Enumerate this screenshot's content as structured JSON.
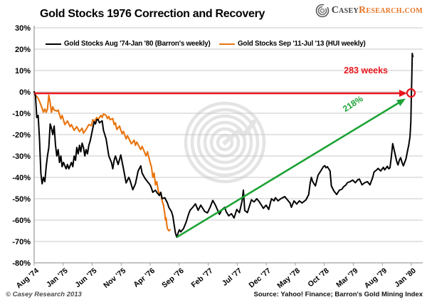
{
  "header": {
    "title": "Gold Stocks 1976 Correction and Recovery",
    "logo": {
      "casey": "Casey",
      "research": "Research.com",
      "research_color": "#e87525",
      "casey_color": "#3d3d3d"
    }
  },
  "footer": {
    "copyright": "© Casey Research 2013",
    "source": "Source: Yahoo! Finance; Barron's Gold Mining Index"
  },
  "chart_data": {
    "type": "line",
    "title": "Gold Stocks 1976 Correction and Recovery",
    "grid": true,
    "legend_position": "top-inside",
    "x_axis": {
      "unit": "weeks",
      "range_weeks": [
        0,
        285
      ],
      "labels": [
        "Aug '74",
        "Jan '75",
        "Jun '75",
        "Nov '75",
        "Apr '76",
        "Sep '76",
        "Feb '77",
        "Jul '77",
        "Dec '77",
        "May '78",
        "Oct '78",
        "Mar '79",
        "Aug '79",
        "Jan '80"
      ]
    },
    "y_axis": {
      "min": -80,
      "max": 30,
      "step": 10,
      "format": "percent",
      "tick_labels": [
        "30%",
        "20%",
        "10%",
        "0%",
        "-10%",
        "-20%",
        "-30%",
        "-40%",
        "-50%",
        "-60%",
        "-70%",
        "-80%"
      ]
    },
    "series": [
      {
        "name": "Gold Stocks Aug '74-Jan '80 (Barron's weekly)",
        "color": "#000000",
        "points": [
          [
            0,
            0
          ],
          [
            1,
            -2
          ],
          [
            2,
            -12
          ],
          [
            3,
            -11
          ],
          [
            4,
            -22
          ],
          [
            5,
            -38
          ],
          [
            6,
            -43
          ],
          [
            7,
            -40
          ],
          [
            8,
            -42
          ],
          [
            9,
            -35
          ],
          [
            10,
            -30
          ],
          [
            11,
            -26
          ],
          [
            12,
            -15
          ],
          [
            13,
            -17
          ],
          [
            14,
            -20
          ],
          [
            15,
            -16
          ],
          [
            16,
            -25
          ],
          [
            17,
            -30
          ],
          [
            18,
            -27
          ],
          [
            19,
            -33
          ],
          [
            20,
            -30
          ],
          [
            21,
            -35
          ],
          [
            22,
            -33
          ],
          [
            24,
            -36
          ],
          [
            25,
            -34
          ],
          [
            26,
            -36
          ],
          [
            28,
            -33
          ],
          [
            29,
            -35
          ],
          [
            30,
            -30
          ],
          [
            31,
            -32
          ],
          [
            32,
            -26
          ],
          [
            33,
            -29
          ],
          [
            34,
            -25
          ],
          [
            35,
            -28
          ],
          [
            36,
            -24
          ],
          [
            37,
            -26
          ],
          [
            38,
            -30
          ],
          [
            39,
            -27
          ],
          [
            40,
            -29
          ],
          [
            41,
            -25
          ],
          [
            42,
            -23
          ],
          [
            44,
            -17
          ],
          [
            45,
            -14
          ],
          [
            46,
            -15
          ],
          [
            47,
            -13
          ],
          [
            48,
            -13
          ],
          [
            49,
            -14.5
          ],
          [
            50,
            -14
          ],
          [
            51,
            -13.5
          ],
          [
            52,
            -18
          ],
          [
            54,
            -22
          ],
          [
            56,
            -30
          ],
          [
            58,
            -33
          ],
          [
            59,
            -36
          ],
          [
            60,
            -32
          ],
          [
            61,
            -30
          ],
          [
            63,
            -34
          ],
          [
            65,
            -29.5
          ],
          [
            67,
            -36
          ],
          [
            69,
            -42.6
          ],
          [
            71,
            -40
          ],
          [
            72,
            -41.5
          ],
          [
            74,
            -45.8
          ],
          [
            76,
            -43
          ],
          [
            78,
            -37
          ],
          [
            80,
            -34.6
          ],
          [
            81,
            -38
          ],
          [
            83,
            -40.3
          ],
          [
            85,
            -42
          ],
          [
            87,
            -43.5
          ],
          [
            88,
            -45
          ],
          [
            89,
            -47
          ],
          [
            91,
            -46
          ],
          [
            92,
            -47
          ],
          [
            94,
            -48.5
          ],
          [
            95,
            -47
          ],
          [
            96,
            -50
          ],
          [
            98,
            -49.5
          ],
          [
            100,
            -52
          ],
          [
            101,
            -54
          ],
          [
            103,
            -56
          ],
          [
            104,
            -58
          ],
          [
            105,
            -62
          ],
          [
            106,
            -66
          ],
          [
            107,
            -68
          ],
          [
            108,
            -66
          ],
          [
            109,
            -64.5
          ],
          [
            110,
            -65.5
          ],
          [
            112,
            -64
          ],
          [
            114,
            -61
          ],
          [
            116,
            -57
          ],
          [
            117,
            -55.4
          ],
          [
            119,
            -54
          ],
          [
            121,
            -52.4
          ],
          [
            123,
            -55.4
          ],
          [
            125,
            -53
          ],
          [
            128,
            -56
          ],
          [
            130,
            -56.6
          ],
          [
            132,
            -54
          ],
          [
            134,
            -50.8
          ],
          [
            136,
            -53
          ],
          [
            139,
            -57.3
          ],
          [
            141,
            -55
          ],
          [
            143,
            -54
          ],
          [
            144,
            -56
          ],
          [
            146,
            -58
          ],
          [
            148,
            -57
          ],
          [
            150,
            -59
          ],
          [
            152,
            -55
          ],
          [
            154,
            -56.5
          ],
          [
            156,
            -51
          ],
          [
            157,
            -46
          ],
          [
            158,
            -55.5
          ],
          [
            160,
            -56.5
          ],
          [
            163,
            -50.5
          ],
          [
            165,
            -51.5
          ],
          [
            167,
            -50
          ],
          [
            169,
            -51.5
          ],
          [
            172,
            -54.5
          ],
          [
            174,
            -53
          ],
          [
            176,
            -55
          ],
          [
            178,
            -50
          ],
          [
            180,
            -51
          ],
          [
            181,
            -49.5
          ],
          [
            183,
            -51
          ],
          [
            185,
            -50
          ],
          [
            188,
            -49
          ],
          [
            190,
            -50.5
          ],
          [
            192,
            -52
          ],
          [
            193,
            -54
          ],
          [
            195,
            -51
          ],
          [
            197,
            -52.5
          ],
          [
            199,
            -51
          ],
          [
            201,
            -52
          ],
          [
            203,
            -51
          ],
          [
            204,
            -50.5
          ],
          [
            206,
            -48
          ],
          [
            207,
            -43
          ],
          [
            208,
            -40
          ],
          [
            209,
            -42
          ],
          [
            211,
            -44
          ],
          [
            213,
            -39
          ],
          [
            215,
            -37
          ],
          [
            217,
            -35
          ],
          [
            218,
            -34.5
          ],
          [
            219,
            -35.5
          ],
          [
            220,
            -35
          ],
          [
            222,
            -37
          ],
          [
            223,
            -44
          ],
          [
            225,
            -46.5
          ],
          [
            227,
            -48
          ],
          [
            229,
            -46
          ],
          [
            231,
            -45.5
          ],
          [
            232,
            -44.5
          ],
          [
            234,
            -43.5
          ],
          [
            235,
            -42.5
          ],
          [
            237,
            -42
          ],
          [
            239,
            -41.3
          ],
          [
            241,
            -42.5
          ],
          [
            243,
            -41
          ],
          [
            244,
            -40.8
          ],
          [
            246,
            -43.5
          ],
          [
            248,
            -42.5
          ],
          [
            250,
            -42
          ],
          [
            252,
            -43.5
          ],
          [
            254,
            -40
          ],
          [
            255,
            -37.5
          ],
          [
            257,
            -36.5
          ],
          [
            258,
            -35.8
          ],
          [
            260,
            -37
          ],
          [
            262,
            -35.3
          ],
          [
            263,
            -36.5
          ],
          [
            265,
            -34.8
          ],
          [
            266,
            -36
          ],
          [
            267,
            -35.5
          ],
          [
            268,
            -30.3
          ],
          [
            269,
            -24.2
          ],
          [
            270,
            -27
          ],
          [
            271,
            -29.6
          ],
          [
            272,
            -32.5
          ],
          [
            273,
            -34.2
          ],
          [
            274,
            -32
          ],
          [
            275,
            -30.8
          ],
          [
            276,
            -33
          ],
          [
            277,
            -34.6
          ],
          [
            278,
            -33
          ],
          [
            279,
            -31.3
          ],
          [
            280,
            -28
          ],
          [
            281,
            -25
          ],
          [
            282,
            -21
          ],
          [
            282.6,
            -14
          ],
          [
            283,
            -2
          ],
          [
            283.3,
            6
          ],
          [
            283.7,
            18
          ],
          [
            284.1,
            16.5
          ]
        ]
      },
      {
        "name": "Gold Stocks Sep '11-Jul '13 (HUI weekly)",
        "color": "#e8750f",
        "points": [
          [
            0,
            0
          ],
          [
            1,
            -1.5
          ],
          [
            3,
            -3
          ],
          [
            5,
            -6
          ],
          [
            7,
            -9.5
          ],
          [
            8,
            -8
          ],
          [
            9,
            -9.6
          ],
          [
            10,
            -8
          ],
          [
            11,
            -1.5
          ],
          [
            12,
            -5
          ],
          [
            13,
            -9.6
          ],
          [
            14,
            -7
          ],
          [
            15,
            -8.5
          ],
          [
            17,
            -9
          ],
          [
            18,
            -8.5
          ],
          [
            20,
            -12.6
          ],
          [
            21,
            -11
          ],
          [
            23,
            -15.3
          ],
          [
            25,
            -13.6
          ],
          [
            27,
            -16.3
          ],
          [
            28,
            -15.3
          ],
          [
            30,
            -18
          ],
          [
            32,
            -16.3
          ],
          [
            34,
            -18.6
          ],
          [
            36,
            -17
          ],
          [
            37,
            -19.3
          ],
          [
            39,
            -17.6
          ],
          [
            41,
            -15.3
          ],
          [
            43,
            -15.8
          ],
          [
            44,
            -13
          ],
          [
            45,
            -14
          ],
          [
            47,
            -12
          ],
          [
            48,
            -13
          ],
          [
            50,
            -11
          ],
          [
            51,
            -12
          ],
          [
            52,
            -10.3
          ],
          [
            54,
            -11
          ],
          [
            55,
            -12.5
          ],
          [
            56,
            -11.5
          ],
          [
            57,
            -13
          ],
          [
            59,
            -12.5
          ],
          [
            60,
            -15.3
          ],
          [
            61,
            -14.5
          ],
          [
            62,
            -17.6
          ],
          [
            64,
            -16
          ],
          [
            66,
            -19.6
          ],
          [
            67,
            -18.5
          ],
          [
            69,
            -22
          ],
          [
            70,
            -20.5
          ],
          [
            73,
            -24.3
          ],
          [
            75,
            -22.6
          ],
          [
            76,
            -25
          ],
          [
            77,
            -23.5
          ],
          [
            80,
            -27
          ],
          [
            81,
            -25.5
          ],
          [
            84,
            -30
          ],
          [
            85,
            -28
          ],
          [
            87,
            -33
          ],
          [
            88,
            -35
          ],
          [
            89,
            -40
          ],
          [
            90,
            -38
          ],
          [
            91,
            -43.5
          ],
          [
            92,
            -42
          ],
          [
            93,
            -46
          ],
          [
            94,
            -48
          ],
          [
            95,
            -47
          ],
          [
            96,
            -51
          ],
          [
            97,
            -53
          ],
          [
            98,
            -57
          ],
          [
            98.5,
            -60
          ],
          [
            99,
            -59
          ],
          [
            99.5,
            -62
          ],
          [
            100,
            -64
          ],
          [
            101,
            -65
          ],
          [
            102,
            -64.5
          ]
        ]
      }
    ],
    "annotations": {
      "duration": {
        "label": "283 weeks",
        "color": "#e8171d",
        "y_pct": 0,
        "from_week": 0,
        "to_week": 283,
        "end_marker": "circle"
      },
      "recovery": {
        "label": "218%",
        "color": "#1da336",
        "from": [
          107,
          -68
        ],
        "to": [
          283,
          -1
        ]
      }
    },
    "watermark": "casey-research-rings-logo",
    "colors": {
      "grid": "#c9c9c9",
      "axis": "#9f9f9f",
      "watermark": "#e4e4e4"
    }
  }
}
